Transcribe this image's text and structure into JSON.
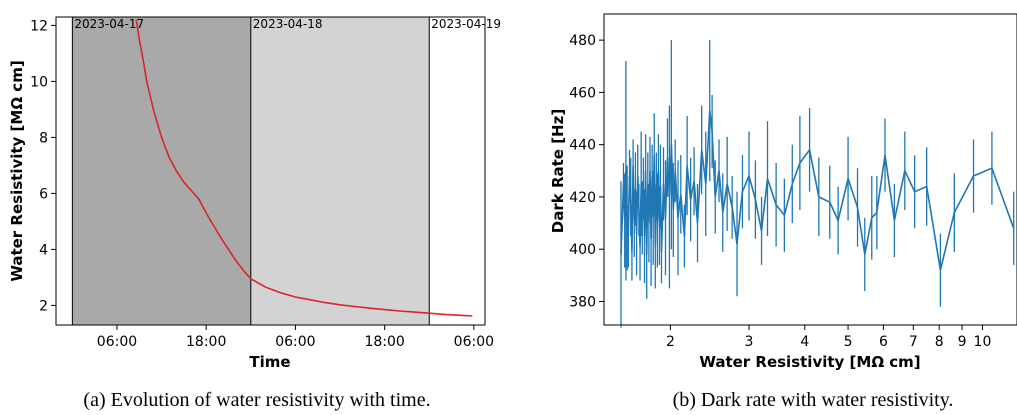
{
  "chart_data": [
    {
      "type": "line",
      "xlabel": "Time",
      "ylabel": "Water Resistivity [MΩ cm]",
      "caption": "(a) Evolution of water resistivity with time.",
      "x_unit": "hours since 2023-04-17 00:00",
      "xlim": [
        -2.2,
        55.5
      ],
      "ylim": [
        1.3,
        12.3
      ],
      "x_tick_labels": [
        "06:00",
        "18:00",
        "06:00",
        "18:00",
        "06:00"
      ],
      "x_tick_values": [
        6,
        18,
        30,
        42,
        54
      ],
      "y_ticks": [
        2,
        4,
        6,
        8,
        10,
        12
      ],
      "day_bands": [
        {
          "label": "2023-04-17",
          "start": 0,
          "end": 24,
          "color": "#a9a9a9"
        },
        {
          "label": "2023-04-18",
          "start": 24,
          "end": 48,
          "color": "#d3d3d3"
        },
        {
          "label": "2023-04-19",
          "start": 48,
          "end": 55.5,
          "color": "#ffffff"
        }
      ],
      "series": [
        {
          "color": "#d62728",
          "points": [
            [
              8.6,
              12.2
            ],
            [
              9.0,
              11.5
            ],
            [
              9.5,
              10.8
            ],
            [
              10.0,
              10.0
            ],
            [
              11.0,
              8.9
            ],
            [
              12.0,
              8.0
            ],
            [
              13.0,
              7.3
            ],
            [
              14.0,
              6.8
            ],
            [
              15.0,
              6.4
            ],
            [
              16.0,
              6.1
            ],
            [
              17.0,
              5.8
            ],
            [
              18.0,
              5.3
            ],
            [
              19.0,
              4.85
            ],
            [
              20.0,
              4.4
            ],
            [
              21.0,
              4.0
            ],
            [
              22.0,
              3.6
            ],
            [
              23.0,
              3.25
            ],
            [
              24.0,
              2.95
            ],
            [
              26.0,
              2.65
            ],
            [
              28.0,
              2.45
            ],
            [
              30.0,
              2.3
            ],
            [
              32.0,
              2.2
            ],
            [
              34.0,
              2.1
            ],
            [
              36.0,
              2.02
            ],
            [
              38.0,
              1.96
            ],
            [
              40.0,
              1.9
            ],
            [
              42.0,
              1.85
            ],
            [
              44.0,
              1.8
            ],
            [
              46.0,
              1.76
            ],
            [
              48.0,
              1.72
            ],
            [
              50.0,
              1.68
            ],
            [
              52.0,
              1.65
            ],
            [
              53.8,
              1.62
            ]
          ]
        }
      ]
    },
    {
      "type": "line",
      "xlabel": "Water Resistivity [MΩ cm]",
      "ylabel": "Dark Rate [Hz]",
      "caption": "(b) Dark rate with water resistivity.",
      "x_scale": "log",
      "xlim": [
        1.42,
        11.95
      ],
      "ylim": [
        371,
        490
      ],
      "x_ticks": [
        2,
        3,
        4,
        5,
        6,
        7,
        8,
        9,
        10
      ],
      "x_tick_labels": [
        "2",
        "3",
        "4",
        "5",
        "6",
        "7",
        "8",
        "9",
        "10"
      ],
      "y_ticks": [
        380,
        400,
        420,
        440,
        460,
        480
      ],
      "series": [
        {
          "color": "#1f77b4",
          "points": [
            {
              "x": 1.55,
              "y": 398,
              "err": 28
            },
            {
              "x": 1.57,
              "y": 425,
              "err": 8
            },
            {
              "x": 1.58,
              "y": 411,
              "err": 18
            },
            {
              "x": 1.59,
              "y": 430,
              "err": 42
            },
            {
              "x": 1.6,
              "y": 412,
              "err": 20
            },
            {
              "x": 1.61,
              "y": 405,
              "err": 12
            },
            {
              "x": 1.62,
              "y": 428,
              "err": 10
            },
            {
              "x": 1.63,
              "y": 420,
              "err": 15
            },
            {
              "x": 1.64,
              "y": 399,
              "err": 11
            },
            {
              "x": 1.65,
              "y": 432,
              "err": 10
            },
            {
              "x": 1.66,
              "y": 410,
              "err": 13
            },
            {
              "x": 1.67,
              "y": 423,
              "err": 14
            },
            {
              "x": 1.68,
              "y": 406,
              "err": 16
            },
            {
              "x": 1.69,
              "y": 428,
              "err": 12
            },
            {
              "x": 1.7,
              "y": 415,
              "err": 10
            },
            {
              "x": 1.71,
              "y": 401,
              "err": 13
            },
            {
              "x": 1.72,
              "y": 425,
              "err": 20
            },
            {
              "x": 1.73,
              "y": 412,
              "err": 14
            },
            {
              "x": 1.74,
              "y": 423,
              "err": 12
            },
            {
              "x": 1.75,
              "y": 405,
              "err": 18
            },
            {
              "x": 1.76,
              "y": 430,
              "err": 14
            },
            {
              "x": 1.77,
              "y": 398,
              "err": 17
            },
            {
              "x": 1.78,
              "y": 425,
              "err": 12
            },
            {
              "x": 1.79,
              "y": 410,
              "err": 15
            },
            {
              "x": 1.8,
              "y": 430,
              "err": 13
            },
            {
              "x": 1.81,
              "y": 404,
              "err": 18
            },
            {
              "x": 1.82,
              "y": 428,
              "err": 12
            },
            {
              "x": 1.83,
              "y": 412,
              "err": 18
            },
            {
              "x": 1.84,
              "y": 436,
              "err": 16
            },
            {
              "x": 1.85,
              "y": 401,
              "err": 16
            },
            {
              "x": 1.86,
              "y": 425,
              "err": 12
            },
            {
              "x": 1.87,
              "y": 411,
              "err": 18
            },
            {
              "x": 1.88,
              "y": 430,
              "err": 14
            },
            {
              "x": 1.89,
              "y": 409,
              "err": 15
            },
            {
              "x": 1.9,
              "y": 424,
              "err": 16
            },
            {
              "x": 1.91,
              "y": 399,
              "err": 12
            },
            {
              "x": 1.93,
              "y": 425,
              "err": 14
            },
            {
              "x": 1.95,
              "y": 412,
              "err": 22
            },
            {
              "x": 1.97,
              "y": 435,
              "err": 15
            },
            {
              "x": 1.99,
              "y": 420,
              "err": 35
            },
            {
              "x": 2.01,
              "y": 440,
              "err": 40
            },
            {
              "x": 2.03,
              "y": 415,
              "err": 18
            },
            {
              "x": 2.05,
              "y": 430,
              "err": 12
            },
            {
              "x": 2.08,
              "y": 412,
              "err": 22
            },
            {
              "x": 2.11,
              "y": 421,
              "err": 15
            },
            {
              "x": 2.15,
              "y": 405,
              "err": 12
            },
            {
              "x": 2.18,
              "y": 432,
              "err": 19
            },
            {
              "x": 2.22,
              "y": 419,
              "err": 16
            },
            {
              "x": 2.26,
              "y": 426,
              "err": 13
            },
            {
              "x": 2.3,
              "y": 410,
              "err": 15
            },
            {
              "x": 2.35,
              "y": 438,
              "err": 17
            },
            {
              "x": 2.4,
              "y": 425,
              "err": 20
            },
            {
              "x": 2.45,
              "y": 453,
              "err": 27
            },
            {
              "x": 2.48,
              "y": 445,
              "err": 14
            },
            {
              "x": 2.52,
              "y": 420,
              "err": 14
            },
            {
              "x": 2.57,
              "y": 430,
              "err": 12
            },
            {
              "x": 2.62,
              "y": 414,
              "err": 15
            },
            {
              "x": 2.68,
              "y": 425,
              "err": 18
            },
            {
              "x": 2.75,
              "y": 416,
              "err": 12
            },
            {
              "x": 2.82,
              "y": 402,
              "err": 20
            },
            {
              "x": 2.9,
              "y": 422,
              "err": 14
            },
            {
              "x": 3.0,
              "y": 428,
              "err": 17
            },
            {
              "x": 3.1,
              "y": 419,
              "err": 15
            },
            {
              "x": 3.2,
              "y": 407,
              "err": 13
            },
            {
              "x": 3.3,
              "y": 427,
              "err": 22
            },
            {
              "x": 3.45,
              "y": 417,
              "err": 16
            },
            {
              "x": 3.6,
              "y": 413,
              "err": 14
            },
            {
              "x": 3.75,
              "y": 425,
              "err": 15
            },
            {
              "x": 3.9,
              "y": 433,
              "err": 18
            },
            {
              "x": 4.1,
              "y": 438,
              "err": 16
            },
            {
              "x": 4.3,
              "y": 420,
              "err": 15
            },
            {
              "x": 4.55,
              "y": 418,
              "err": 14
            },
            {
              "x": 4.75,
              "y": 411,
              "err": 13
            },
            {
              "x": 5.0,
              "y": 427,
              "err": 16
            },
            {
              "x": 5.25,
              "y": 416,
              "err": 15
            },
            {
              "x": 5.45,
              "y": 398,
              "err": 14
            },
            {
              "x": 5.65,
              "y": 412,
              "err": 16
            },
            {
              "x": 5.8,
              "y": 414,
              "err": 14
            },
            {
              "x": 6.05,
              "y": 436,
              "err": 14
            },
            {
              "x": 6.35,
              "y": 411,
              "err": 14
            },
            {
              "x": 6.7,
              "y": 430,
              "err": 15
            },
            {
              "x": 7.05,
              "y": 422,
              "err": 14
            },
            {
              "x": 7.5,
              "y": 424,
              "err": 15
            },
            {
              "x": 8.05,
              "y": 392,
              "err": 14
            },
            {
              "x": 8.65,
              "y": 414,
              "err": 15
            },
            {
              "x": 9.55,
              "y": 428,
              "err": 14
            },
            {
              "x": 10.5,
              "y": 431,
              "err": 14
            },
            {
              "x": 11.75,
              "y": 408,
              "err": 14
            }
          ]
        }
      ]
    }
  ]
}
